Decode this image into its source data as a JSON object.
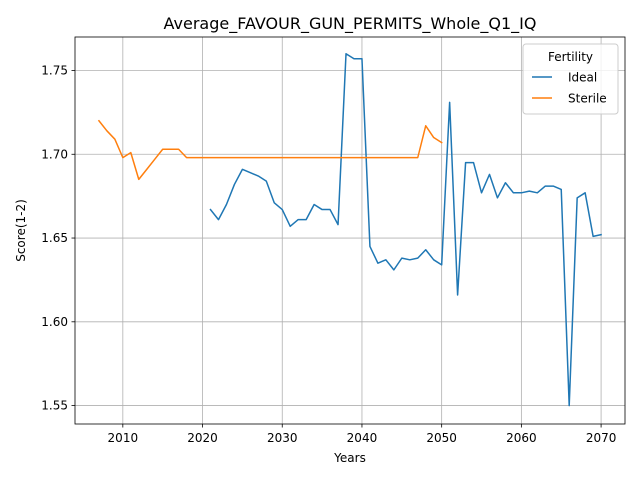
{
  "chart_data": {
    "type": "line",
    "title": "Average_FAVOUR_GUN_PERMITS_Whole_Q1_IQ",
    "xlabel": "Years",
    "ylabel": "Score(1-2)",
    "xlim": [
      2004,
      2073
    ],
    "ylim": [
      1.539,
      1.77
    ],
    "xticks": [
      2010,
      2020,
      2030,
      2040,
      2050,
      2060,
      2070
    ],
    "yticks": [
      1.55,
      1.6,
      1.65,
      1.7,
      1.75
    ],
    "ytick_labels": [
      "1.55",
      "1.60",
      "1.65",
      "1.70",
      "1.75"
    ],
    "grid": true,
    "legend": {
      "title": "Fertility",
      "placement": "top-right"
    },
    "series": [
      {
        "name": "Ideal",
        "color": "#1f77b4",
        "x": [
          2021,
          2022,
          2023,
          2024,
          2025,
          2026,
          2027,
          2028,
          2029,
          2030,
          2031,
          2032,
          2033,
          2034,
          2035,
          2036,
          2037,
          2038,
          2039,
          2040,
          2041,
          2042,
          2043,
          2044,
          2045,
          2046,
          2047,
          2048,
          2049,
          2050,
          2051,
          2052,
          2053,
          2054,
          2055,
          2056,
          2057,
          2058,
          2059,
          2060,
          2061,
          2062,
          2063,
          2064,
          2065,
          2066,
          2067,
          2068,
          2069,
          2070
        ],
        "y": [
          1.667,
          1.661,
          1.67,
          1.682,
          1.691,
          1.689,
          1.687,
          1.684,
          1.671,
          1.667,
          1.657,
          1.661,
          1.661,
          1.67,
          1.667,
          1.667,
          1.658,
          1.76,
          1.757,
          1.757,
          1.645,
          1.635,
          1.637,
          1.631,
          1.638,
          1.637,
          1.638,
          1.643,
          1.637,
          1.634,
          1.731,
          1.616,
          1.695,
          1.695,
          1.677,
          1.688,
          1.674,
          1.683,
          1.677,
          1.677,
          1.678,
          1.677,
          1.681,
          1.681,
          1.679,
          1.55,
          1.674,
          1.677,
          1.651,
          1.652
        ]
      },
      {
        "name": "Sterile",
        "color": "#ff7f0e",
        "x": [
          2007,
          2008,
          2009,
          2010,
          2011,
          2012,
          2013,
          2014,
          2015,
          2016,
          2017,
          2018,
          2019,
          2020,
          2021,
          2022,
          2023,
          2024,
          2025,
          2026,
          2027,
          2028,
          2029,
          2030,
          2031,
          2032,
          2033,
          2034,
          2035,
          2036,
          2037,
          2038,
          2039,
          2040,
          2041,
          2042,
          2043,
          2044,
          2045,
          2046,
          2047,
          2048,
          2049,
          2050
        ],
        "y": [
          1.72,
          1.714,
          1.709,
          1.698,
          1.701,
          1.685,
          1.691,
          1.697,
          1.703,
          1.703,
          1.703,
          1.698,
          1.698,
          1.698,
          1.698,
          1.698,
          1.698,
          1.698,
          1.698,
          1.698,
          1.698,
          1.698,
          1.698,
          1.698,
          1.698,
          1.698,
          1.698,
          1.698,
          1.698,
          1.698,
          1.698,
          1.698,
          1.698,
          1.698,
          1.698,
          1.698,
          1.698,
          1.698,
          1.698,
          1.698,
          1.698,
          1.717,
          1.71,
          1.707
        ]
      }
    ]
  }
}
